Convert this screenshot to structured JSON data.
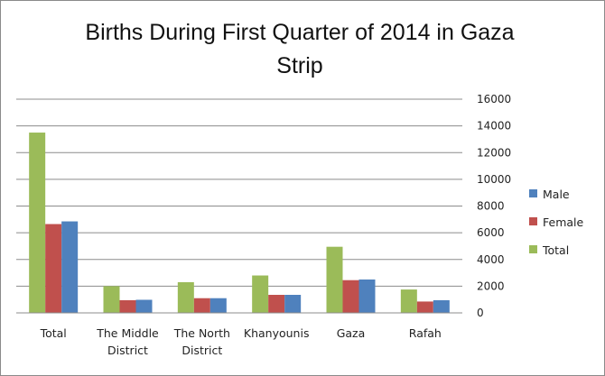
{
  "chart_data": {
    "type": "bar",
    "title": "Births During First Quarter of 2014 in Gaza Strip",
    "title_lines": [
      "Births During First Quarter of 2014 in Gaza",
      "Strip"
    ],
    "categories": [
      "Total",
      "The Middle District",
      "The North District",
      "Khanyounis",
      "Gaza",
      "Rafah"
    ],
    "category_lines": [
      [
        "Total"
      ],
      [
        "The Middle",
        "District"
      ],
      [
        "The North",
        "District"
      ],
      [
        "Khanyounis"
      ],
      [
        "Gaza"
      ],
      [
        "Rafah"
      ]
    ],
    "series": [
      {
        "name": "Total",
        "color": "#9bbb59",
        "values": [
          13500,
          2000,
          2300,
          2800,
          4950,
          1750
        ]
      },
      {
        "name": "Female",
        "color": "#c0504d",
        "values": [
          6650,
          950,
          1100,
          1350,
          2450,
          850
        ]
      },
      {
        "name": "Male",
        "color": "#4f81bd",
        "values": [
          6850,
          980,
          1100,
          1350,
          2500,
          950
        ]
      }
    ],
    "legend_order": [
      "Male",
      "Female",
      "Total"
    ],
    "legend_position": "right",
    "yticks": [
      0,
      2000,
      4000,
      6000,
      8000,
      10000,
      12000,
      14000,
      16000
    ],
    "ylim": [
      0,
      16000
    ],
    "y_axis_side": "right",
    "grid": true,
    "xlabel": "",
    "ylabel": ""
  }
}
